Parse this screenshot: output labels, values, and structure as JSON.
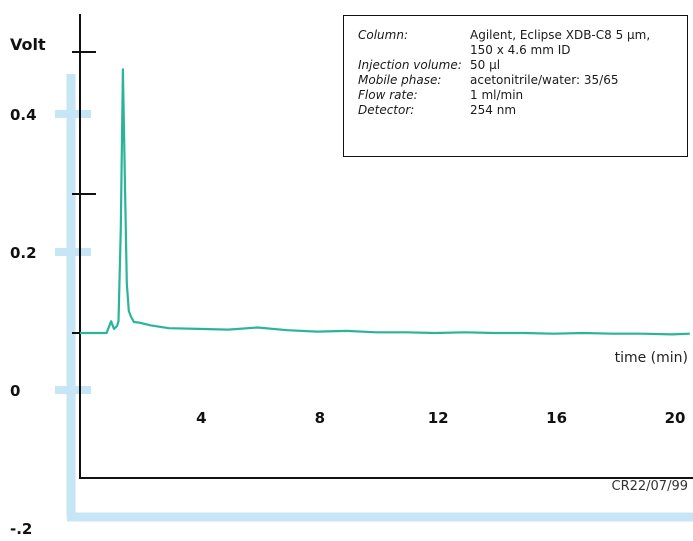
{
  "chart_data": {
    "type": "line",
    "ylabel": "Volt",
    "xlabel": "time (min)",
    "x_ticks": [
      4,
      8,
      12,
      16,
      20
    ],
    "y_ticks": [
      -0.2,
      0,
      0.2,
      0.4
    ],
    "xlim": [
      0,
      20.7
    ],
    "ylim": [
      -0.2,
      0.45
    ],
    "series": [
      {
        "x": [
          0,
          0.4,
          0.9,
          1.05,
          1.15,
          1.25,
          1.3,
          1.38,
          1.45,
          1.52,
          1.58,
          1.65,
          1.72,
          1.82,
          2.0,
          2.4,
          3.0,
          4.0,
          5.0,
          6.0,
          7.0,
          8.0,
          9.0,
          10.0,
          11.0,
          12.0,
          13.0,
          14.0,
          15.0,
          16.0,
          17.0,
          18.0,
          19.0,
          20.0,
          20.6
        ],
        "y": [
          0.088,
          0.088,
          0.088,
          0.105,
          0.094,
          0.098,
          0.105,
          0.24,
          0.47,
          0.3,
          0.16,
          0.12,
          0.112,
          0.104,
          0.103,
          0.099,
          0.095,
          0.094,
          0.093,
          0.096,
          0.092,
          0.09,
          0.091,
          0.089,
          0.089,
          0.088,
          0.089,
          0.088,
          0.088,
          0.087,
          0.088,
          0.087,
          0.087,
          0.086,
          0.087
        ]
      }
    ],
    "colors": {
      "trace": "#2ab49a",
      "axis": "#111111",
      "offset_axis": "#c7e6f5"
    },
    "grid": false
  },
  "method": {
    "rows": [
      {
        "key": "Column:",
        "value": "Agilent, Eclipse XDB-C8 5 µm,\n150 x 4.6 mm ID"
      },
      {
        "key": "Injection volume:",
        "value": "50 µl"
      },
      {
        "key": "Mobile phase:",
        "value": "acetonitrile/water: 35/65"
      },
      {
        "key": "Flow rate:",
        "value": "1 ml/min"
      },
      {
        "key": "Detector:",
        "value": "254 nm"
      }
    ]
  },
  "footnote": "CR22/07/99"
}
